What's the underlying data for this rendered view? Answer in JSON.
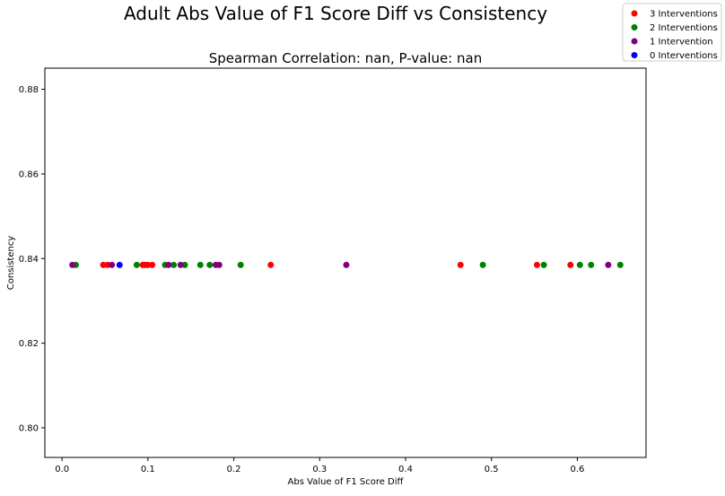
{
  "chart_data": {
    "type": "scatter",
    "title": "Adult Abs Value of F1 Score Diff vs Consistency",
    "subtitle": "Spearman Correlation: nan, P-value: nan",
    "xlabel": "Abs Value of F1 Score Diff",
    "ylabel": "Consistency",
    "xlim": [
      -0.02,
      0.68
    ],
    "ylim": [
      0.793,
      0.885
    ],
    "x_ticks": [
      0.0,
      0.1,
      0.2,
      0.3,
      0.4,
      0.5,
      0.6
    ],
    "x_tick_labels": [
      "0.0",
      "0.1",
      "0.2",
      "0.3",
      "0.4",
      "0.5",
      "0.6"
    ],
    "y_ticks": [
      0.8,
      0.82,
      0.84,
      0.86,
      0.88
    ],
    "y_tick_labels": [
      "0.80",
      "0.82",
      "0.84",
      "0.86",
      "0.88"
    ],
    "grid": false,
    "legend_position": "top-right (outside plot)",
    "series": [
      {
        "name": "3 Interventions",
        "color": "#ff0000",
        "points": [
          {
            "x": 0.048,
            "y": 0.8385
          },
          {
            "x": 0.053,
            "y": 0.8385
          },
          {
            "x": 0.094,
            "y": 0.8385
          },
          {
            "x": 0.097,
            "y": 0.8385
          },
          {
            "x": 0.1,
            "y": 0.8385
          },
          {
            "x": 0.105,
            "y": 0.8385
          },
          {
            "x": 0.243,
            "y": 0.8385
          },
          {
            "x": 0.464,
            "y": 0.8385
          },
          {
            "x": 0.553,
            "y": 0.8385
          },
          {
            "x": 0.592,
            "y": 0.8385
          }
        ]
      },
      {
        "name": "2 Interventions",
        "color": "#008000",
        "points": [
          {
            "x": 0.016,
            "y": 0.8385
          },
          {
            "x": 0.087,
            "y": 0.8385
          },
          {
            "x": 0.12,
            "y": 0.8385
          },
          {
            "x": 0.13,
            "y": 0.8385
          },
          {
            "x": 0.143,
            "y": 0.8385
          },
          {
            "x": 0.161,
            "y": 0.8385
          },
          {
            "x": 0.172,
            "y": 0.8385
          },
          {
            "x": 0.208,
            "y": 0.8385
          },
          {
            "x": 0.49,
            "y": 0.8385
          },
          {
            "x": 0.561,
            "y": 0.8385
          },
          {
            "x": 0.603,
            "y": 0.8385
          },
          {
            "x": 0.616,
            "y": 0.8385
          },
          {
            "x": 0.65,
            "y": 0.8385
          }
        ]
      },
      {
        "name": "1 Intervention",
        "color": "#800080",
        "points": [
          {
            "x": 0.012,
            "y": 0.8385
          },
          {
            "x": 0.058,
            "y": 0.8385
          },
          {
            "x": 0.124,
            "y": 0.8385
          },
          {
            "x": 0.138,
            "y": 0.8385
          },
          {
            "x": 0.179,
            "y": 0.8385
          },
          {
            "x": 0.183,
            "y": 0.8385
          },
          {
            "x": 0.331,
            "y": 0.8385
          },
          {
            "x": 0.636,
            "y": 0.8385
          }
        ]
      },
      {
        "name": "0 Interventions",
        "color": "#0000ff",
        "points": [
          {
            "x": 0.067,
            "y": 0.8385
          }
        ]
      }
    ]
  }
}
